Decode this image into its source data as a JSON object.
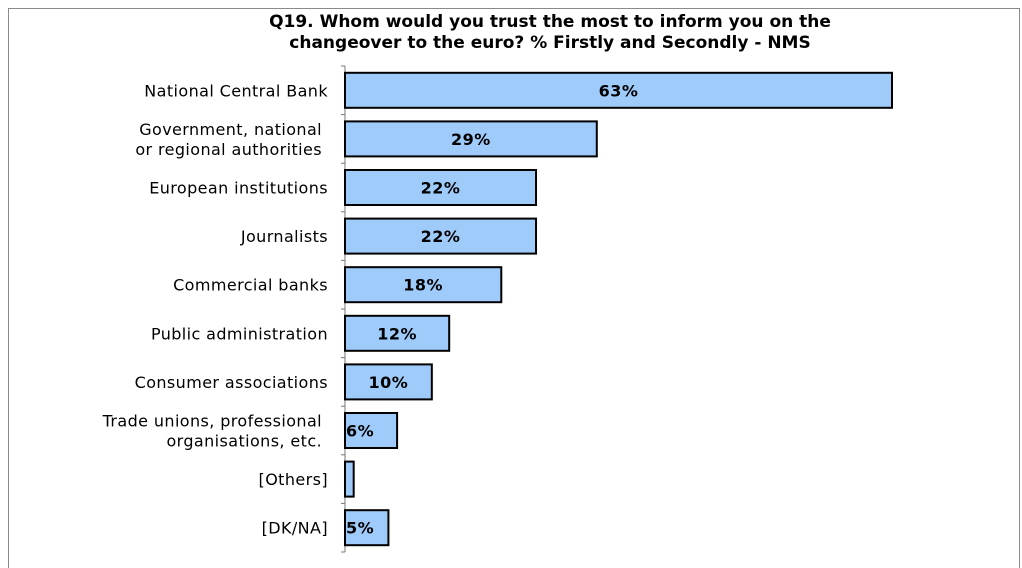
{
  "chart_data": {
    "type": "bar",
    "orientation": "horizontal",
    "title_lines": [
      "Q19. Whom would you trust the most to inform you on the",
      "changeover to the euro? % Firstly and Secondly - NMS"
    ],
    "categories": [
      [
        "National Central Bank"
      ],
      [
        "Government, national",
        "or regional authorities"
      ],
      [
        "European institutions"
      ],
      [
        "Journalists"
      ],
      [
        "Commercial banks"
      ],
      [
        "Public administration"
      ],
      [
        "Consumer associations"
      ],
      [
        "Trade unions, professional",
        "organisations, etc."
      ],
      [
        "[Others]"
      ],
      [
        "[DK/NA]"
      ]
    ],
    "values": [
      63,
      29,
      22,
      22,
      18,
      12,
      10,
      6,
      1,
      5
    ],
    "data_labels": [
      "63%",
      "29%",
      "22%",
      "22%",
      "18%",
      "12%",
      "10%",
      "6%",
      "",
      "5%"
    ],
    "xlim": [
      0,
      63
    ],
    "bar_color": "#9fcbfb",
    "bar_stroke": "#000000",
    "grid": false,
    "legend": "none"
  }
}
